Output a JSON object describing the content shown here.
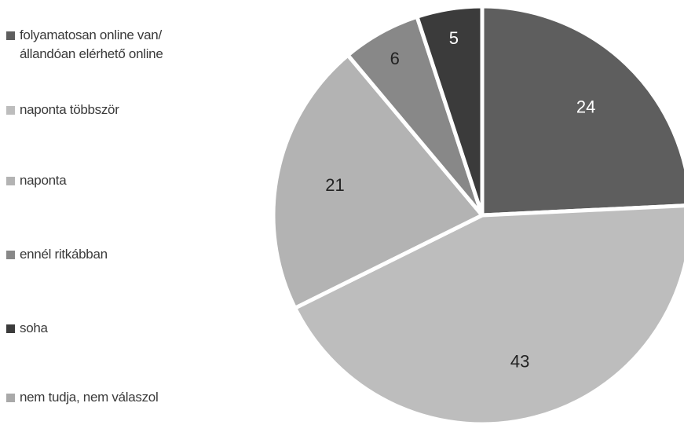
{
  "chart_data": {
    "type": "pie",
    "title": "",
    "slices": [
      {
        "label": "folyamatosan online van/\nállandóan elérhető online",
        "value": 24,
        "color": "#5e5e5e",
        "label_color": "#ffffff"
      },
      {
        "label": "naponta többször",
        "value": 43,
        "color": "#bdbdbd",
        "label_color": "#222222"
      },
      {
        "label": "naponta",
        "value": 21,
        "color": "#b3b3b3",
        "label_color": "#222222"
      },
      {
        "label": "ennél ritkábban",
        "value": 6,
        "color": "#888888",
        "label_color": "#222222"
      },
      {
        "label": "soha",
        "value": 5,
        "color": "#3b3b3b",
        "label_color": "#ffffff"
      },
      {
        "label": "nem tudja, nem válaszol",
        "value": 0,
        "color": "#a9a9a9",
        "label_color": "#222222"
      }
    ],
    "legend_position": "left"
  }
}
